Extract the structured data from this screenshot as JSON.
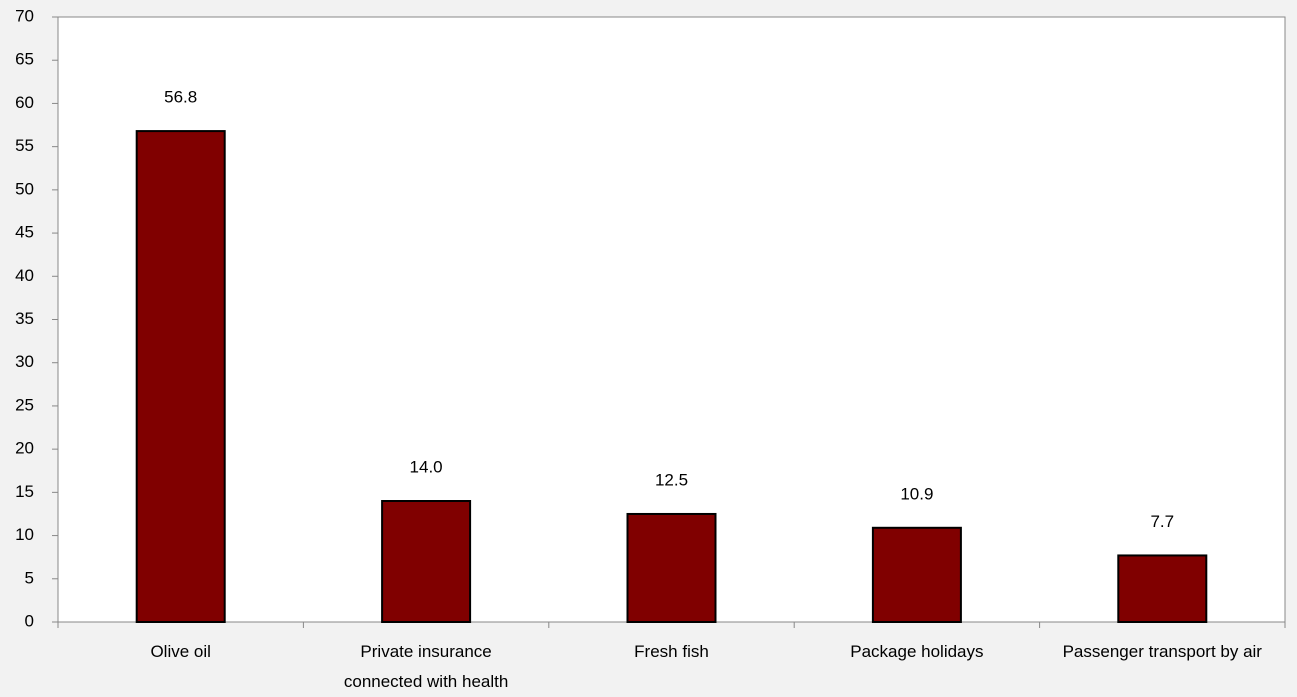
{
  "chart_data": {
    "type": "bar",
    "categories": [
      "Olive oil",
      "Private insurance connected with health",
      "Fresh fish",
      "Package holidays",
      "Passenger transport by air"
    ],
    "values": [
      56.8,
      14.0,
      12.5,
      10.9,
      7.7
    ],
    "value_labels": [
      "56.8",
      "14.0",
      "12.5",
      "10.9",
      "7.7"
    ],
    "color": "#800000",
    "ylim": [
      0,
      70
    ],
    "yticks": [
      0,
      5,
      10,
      15,
      20,
      25,
      30,
      35,
      40,
      45,
      50,
      55,
      60,
      65,
      70
    ],
    "grid": false
  }
}
